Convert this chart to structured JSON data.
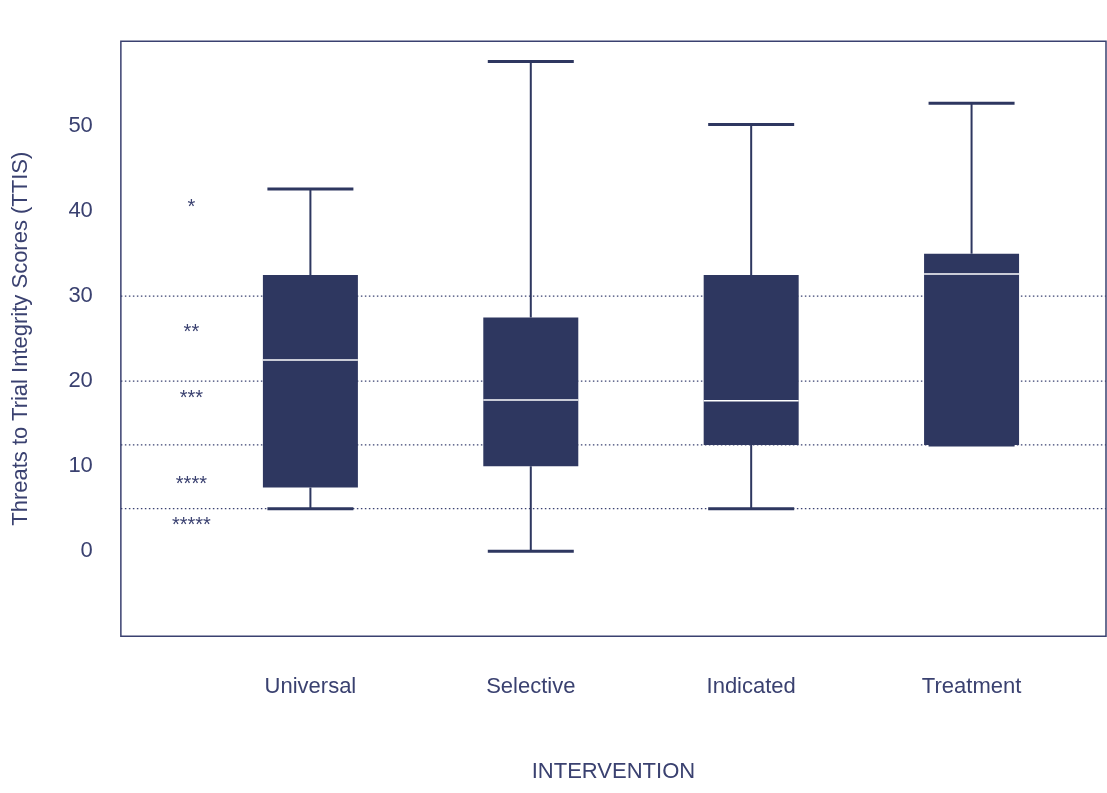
{
  "chart_data": {
    "type": "box",
    "xlabel": "INTERVENTION",
    "ylabel": "Threats to Trial Integrity Scores (TTIS)",
    "categories": [
      "Universal",
      "Selective",
      "Indicated",
      "Treatment"
    ],
    "color": "#2e3760",
    "boxes": [
      {
        "low": 5,
        "q1": 7.5,
        "median": 22.5,
        "q3": 32.5,
        "high": 42.6
      },
      {
        "low": 0,
        "q1": 10,
        "median": 17.8,
        "q3": 27.5,
        "high": 57.6
      },
      {
        "low": 5,
        "q1": 12.5,
        "median": 17.7,
        "q3": 32.5,
        "high": 50.2
      },
      {
        "low": 12.5,
        "q1": 12.5,
        "median": 32.6,
        "q3": 35,
        "high": 52.7
      }
    ],
    "ylim": [
      -10,
      60
    ],
    "yticks": [
      0,
      10,
      20,
      30,
      40,
      50
    ],
    "grid": false,
    "ref_lines": [
      {
        "axis": "y",
        "value": 30,
        "line_style": "dotted"
      },
      {
        "axis": "y",
        "value": 20,
        "line_style": "dotted"
      },
      {
        "axis": "y",
        "value": 12.5,
        "line_style": "dotted"
      },
      {
        "axis": "y",
        "value": 5,
        "line_style": "dotted"
      }
    ],
    "annotations": [
      "*",
      "**",
      "***",
      "****",
      "*****"
    ]
  }
}
